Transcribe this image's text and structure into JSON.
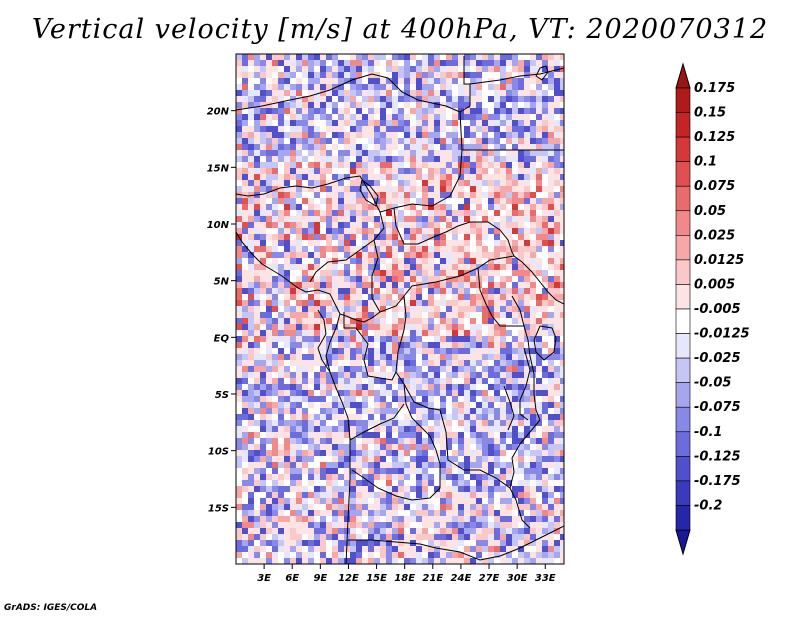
{
  "title": "Vertical velocity [m/s] at 400hPa, VT: 2020070312",
  "credit": "GrADS: IGES/COLA",
  "map": {
    "lon_range": [
      0,
      35
    ],
    "lat_range": [
      -20,
      25
    ],
    "lat_ticks": [
      {
        "value": 20,
        "label": "20N"
      },
      {
        "value": 15,
        "label": "15N"
      },
      {
        "value": 10,
        "label": "10N"
      },
      {
        "value": 5,
        "label": "5N"
      },
      {
        "value": 0,
        "label": "EQ"
      },
      {
        "value": -5,
        "label": "5S"
      },
      {
        "value": -10,
        "label": "10S"
      },
      {
        "value": -15,
        "label": "15S"
      }
    ],
    "lon_ticks": [
      {
        "value": 3,
        "label": "3E"
      },
      {
        "value": 6,
        "label": "6E"
      },
      {
        "value": 9,
        "label": "9E"
      },
      {
        "value": 12,
        "label": "12E"
      },
      {
        "value": 15,
        "label": "15E"
      },
      {
        "value": 18,
        "label": "18E"
      },
      {
        "value": 21,
        "label": "21E"
      },
      {
        "value": 24,
        "label": "24E"
      },
      {
        "value": 27,
        "label": "27E"
      },
      {
        "value": 30,
        "label": "30E"
      },
      {
        "value": 33,
        "label": "33E"
      }
    ]
  },
  "colorbar": {
    "levels": [
      {
        "label": "0.175",
        "color": "#b01a1a"
      },
      {
        "label": "0.15",
        "color": "#c42424"
      },
      {
        "label": "0.125",
        "color": "#d43838"
      },
      {
        "label": "0.1",
        "color": "#e05050"
      },
      {
        "label": "0.075",
        "color": "#e86c6c"
      },
      {
        "label": "0.05",
        "color": "#f08a8a"
      },
      {
        "label": "0.025",
        "color": "#f6a8a8"
      },
      {
        "label": "0.0125",
        "color": "#fac8c8"
      },
      {
        "label": "0.005",
        "color": "#fde4e4"
      },
      {
        "label": "-0.005",
        "color": "#ffffff"
      },
      {
        "label": "-0.0125",
        "color": "#e6e6fc"
      },
      {
        "label": "-0.025",
        "color": "#c6c6f6"
      },
      {
        "label": "-0.05",
        "color": "#a6a6ee"
      },
      {
        "label": "-0.075",
        "color": "#8888e6"
      },
      {
        "label": "-0.1",
        "color": "#6c6cdc"
      },
      {
        "label": "-0.125",
        "color": "#5050cc"
      },
      {
        "label": "-0.175",
        "color": "#3a3abc"
      },
      {
        "label": "-0.2",
        "color": "#2626a8"
      }
    ],
    "top_color": "#9c1414",
    "bottom_color": "#18189a"
  }
}
